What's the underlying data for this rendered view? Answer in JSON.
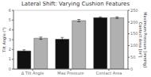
{
  "chart_data": {
    "type": "bar",
    "title": "Lateral Shift: Varying Cushion Features",
    "categories": [
      "Δ Tilt Angle",
      "Max Pressure",
      "Contact Area"
    ],
    "series": [
      {
        "color": "#111111",
        "values": [
          1.85,
          3.05,
          5.25
        ],
        "errors": [
          0.12,
          0.18,
          0.08
        ]
      },
      {
        "color": "#b0b0b0",
        "values": [
          3.15,
          4.95,
          5.25
        ],
        "errors": [
          0.12,
          0.12,
          0.08
        ]
      }
    ],
    "ylabel": "Tilt Angle (°)",
    "y2label": "Maximum Pressure [mmHg]\nContact Area [in²]",
    "ylim": [
      0,
      6
    ],
    "yticks": [
      0,
      1,
      2,
      3,
      4,
      5,
      6
    ],
    "y2lim": [
      0,
      250
    ],
    "y2ticks": [
      0,
      50,
      100,
      150,
      200,
      250
    ],
    "grid": true
  }
}
